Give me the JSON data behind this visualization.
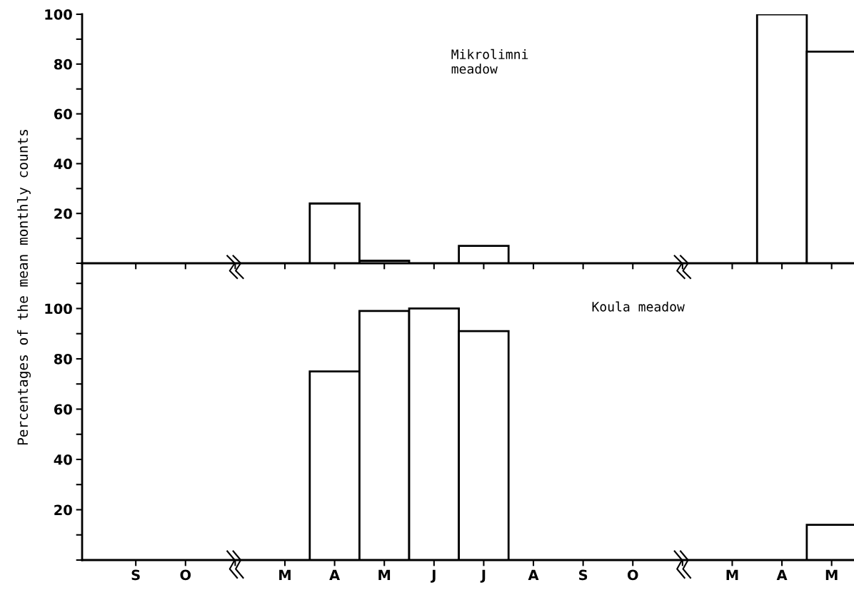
{
  "chart_data": [
    {
      "type": "bar",
      "categories": [
        null,
        null,
        null,
        null,
        null,
        null,
        null,
        null,
        null,
        null,
        null,
        null,
        null,
        null,
        null
      ],
      "values": [
        null,
        null,
        null,
        null,
        24,
        1,
        null,
        7,
        null,
        null,
        null,
        null,
        null,
        100,
        85
      ],
      "color": "#ffffff",
      "ylim": [
        0,
        100
      ],
      "yticks": [
        {
          "value": 0,
          "label": null
        },
        {
          "value": 10,
          "label": null
        },
        20,
        {
          "value": 30,
          "label": null
        },
        40,
        {
          "value": 50,
          "label": null
        },
        60,
        {
          "value": 70,
          "label": null
        },
        80,
        {
          "value": 90,
          "label": null
        },
        100
      ],
      "ylabel": "Percentages of the mean monthly counts",
      "annotations": [
        "Mikrolimni\nmeadow"
      ],
      "tick_labels": "y"
    },
    {
      "type": "bar",
      "categories": [
        "S",
        "O",
        null,
        "M",
        "A",
        "M",
        "J",
        "J",
        "A",
        "S",
        "O",
        null,
        "M",
        "A",
        "M"
      ],
      "values": [
        null,
        null,
        null,
        null,
        75,
        99,
        100,
        91,
        null,
        null,
        null,
        null,
        null,
        null,
        14
      ],
      "color": "#ffffff",
      "ylim": [
        0,
        118
      ],
      "yticks": [
        {
          "value": 0,
          "label": null
        },
        {
          "value": 10,
          "label": null
        },
        20,
        {
          "value": 30,
          "label": null
        },
        40,
        {
          "value": 50,
          "label": null
        },
        60,
        {
          "value": 70,
          "label": null
        },
        80,
        {
          "value": 90,
          "label": null
        },
        100,
        {
          "value": 110,
          "label": null
        }
      ],
      "annotations": [
        "Koula meadow"
      ]
    }
  ]
}
